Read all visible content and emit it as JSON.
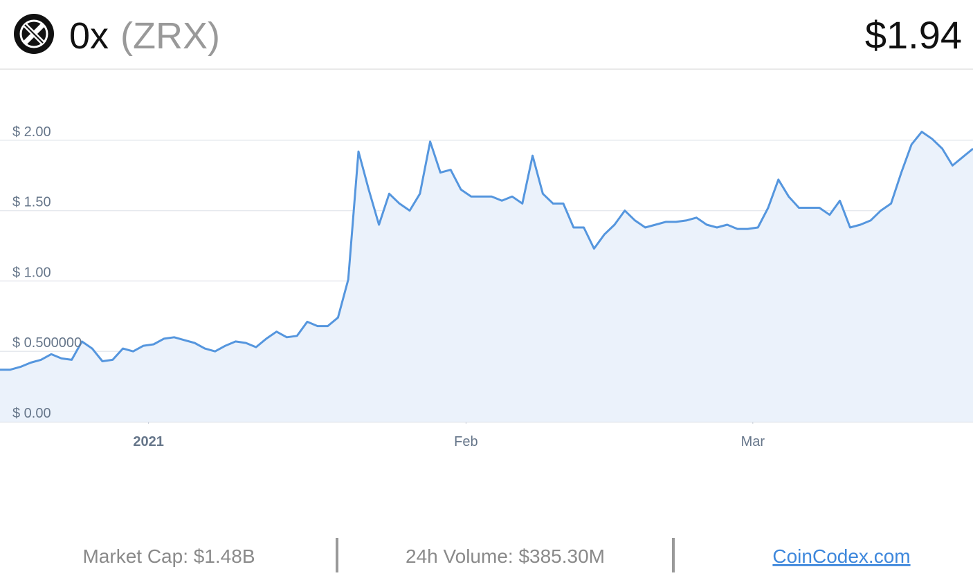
{
  "header": {
    "name": "0x",
    "ticker": "(ZRX)",
    "price": "$1.94"
  },
  "chart_data": {
    "type": "line",
    "values": [
      0.37,
      0.37,
      0.39,
      0.42,
      0.44,
      0.48,
      0.45,
      0.44,
      0.57,
      0.52,
      0.43,
      0.44,
      0.52,
      0.5,
      0.54,
      0.55,
      0.59,
      0.6,
      0.58,
      0.56,
      0.52,
      0.5,
      0.54,
      0.57,
      0.56,
      0.53,
      0.59,
      0.64,
      0.6,
      0.61,
      0.71,
      0.68,
      0.68,
      0.74,
      1.01,
      1.92,
      1.65,
      1.4,
      1.62,
      1.55,
      1.5,
      1.62,
      1.99,
      1.77,
      1.79,
      1.65,
      1.6,
      1.6,
      1.6,
      1.57,
      1.6,
      1.55,
      1.89,
      1.62,
      1.55,
      1.55,
      1.38,
      1.38,
      1.23,
      1.33,
      1.4,
      1.5,
      1.43,
      1.38,
      1.4,
      1.42,
      1.42,
      1.43,
      1.45,
      1.4,
      1.38,
      1.4,
      1.37,
      1.37,
      1.38,
      1.52,
      1.72,
      1.6,
      1.52,
      1.52,
      1.52,
      1.47,
      1.57,
      1.38,
      1.4,
      1.43,
      1.5,
      1.55,
      1.77,
      1.97,
      2.06,
      2.01,
      1.94,
      1.82,
      1.88,
      1.94
    ],
    "color": "#5596de",
    "fill": "#ebf2fb",
    "xlim": [
      0,
      95
    ],
    "xticks": [
      {
        "value": 14.5,
        "label": "2021"
      },
      {
        "value": 45.5,
        "label": "Feb"
      },
      {
        "value": 73.5,
        "label": "Mar"
      }
    ],
    "ylim": [
      0,
      2.5
    ],
    "yticks": [
      {
        "value": 0,
        "label": "$ 0.00"
      },
      {
        "value": 0.5,
        "label": "$ 0.500000"
      },
      {
        "value": 1,
        "label": "$ 1.00"
      },
      {
        "value": 1.5,
        "label": "$ 1.50"
      },
      {
        "value": 2,
        "label": "$ 2.00"
      }
    ],
    "grid": true
  },
  "footer": {
    "market_cap": "Market Cap: $1.48B",
    "volume": "24h Volume: $385.30M",
    "link": "CoinCodex.com"
  }
}
